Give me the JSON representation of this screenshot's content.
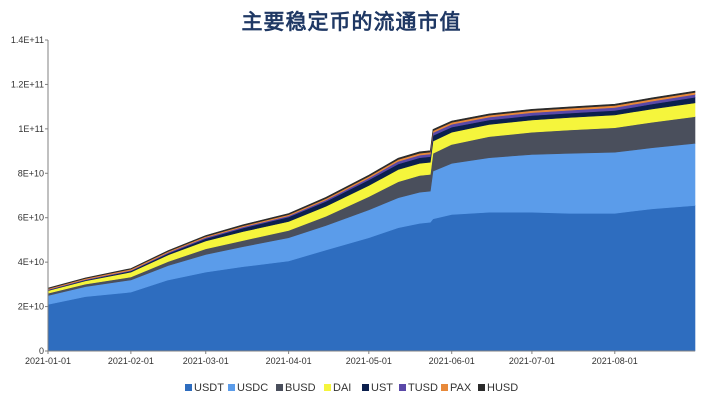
{
  "title": "主要稳定币的流通市值",
  "chart_data": {
    "type": "area",
    "stacked": true,
    "title": "主要稳定币的流通市值",
    "xlabel": "",
    "ylabel": "",
    "ylim": [
      0,
      140000000000
    ],
    "xlim": [
      "2021-01-01",
      "2021-08-31"
    ],
    "grid": false,
    "legend_position": "bottom",
    "y_ticks": [
      0,
      20000000000,
      40000000000,
      60000000000,
      80000000000,
      100000000000,
      120000000000,
      140000000000
    ],
    "y_tick_labels": [
      "0",
      "2E+10",
      "4E+10",
      "6E+10",
      "8E+10",
      "1E+11",
      "1.2E+11",
      "1.4E+11"
    ],
    "x_ticks": [
      "2021-01-01",
      "2021-02-01",
      "2021-03-01",
      "2021-04-01",
      "2021-05-01",
      "2021-06-01",
      "2021-07-01",
      "2021-08-01"
    ],
    "x_tick_labels": [
      "2021-01-01",
      "2021-02-01",
      "2021-03-01",
      "2021-04-01",
      "2021-05-01",
      "2021-06-01",
      "2021-07-01",
      "2021-08-01"
    ],
    "x": [
      "2021-01-01",
      "2021-01-15",
      "2021-02-01",
      "2021-02-15",
      "2021-03-01",
      "2021-03-15",
      "2021-04-01",
      "2021-04-15",
      "2021-05-01",
      "2021-05-12",
      "2021-05-20",
      "2021-05-24",
      "2021-05-25",
      "2021-06-01",
      "2021-06-15",
      "2021-07-01",
      "2021-07-15",
      "2021-08-01",
      "2021-08-15",
      "2021-08-31"
    ],
    "series": [
      {
        "name": "USDT",
        "color": "#2e6dbf",
        "values": [
          21000000000,
          24500000000,
          26500000000,
          32000000000,
          35500000000,
          38000000000,
          40500000000,
          45500000000,
          51000000000,
          55500000000,
          57500000000,
          58000000000,
          59500000000,
          61500000000,
          62500000000,
          62500000000,
          62000000000,
          62000000000,
          64000000000,
          65500000000
        ]
      },
      {
        "name": "USDC",
        "color": "#5b9cea",
        "values": [
          4000000000,
          4500000000,
          5500000000,
          6500000000,
          8000000000,
          9000000000,
          10500000000,
          11000000000,
          12500000000,
          13500000000,
          14000000000,
          14000000000,
          21500000000,
          23000000000,
          24500000000,
          26000000000,
          27000000000,
          27500000000,
          27500000000,
          28000000000
        ]
      },
      {
        "name": "BUSD",
        "color": "#4a4f5c",
        "values": [
          1000000000,
          1100000000,
          1300000000,
          1800000000,
          2500000000,
          2800000000,
          3300000000,
          4200000000,
          6000000000,
          7200000000,
          7500000000,
          7500000000,
          8000000000,
          8500000000,
          9500000000,
          10000000000,
          10500000000,
          11000000000,
          11500000000,
          12000000000
        ]
      },
      {
        "name": "DAI",
        "color": "#f5f53c",
        "values": [
          1200000000,
          1500000000,
          2200000000,
          3000000000,
          3500000000,
          4000000000,
          4000000000,
          4500000000,
          5000000000,
          5500000000,
          5500000000,
          5500000000,
          5500000000,
          5500000000,
          5500000000,
          5500000000,
          5600000000,
          5800000000,
          6000000000,
          6200000000
        ]
      },
      {
        "name": "UST",
        "color": "#0b1f4d",
        "values": [
          200000000,
          300000000,
          500000000,
          700000000,
          1100000000,
          1600000000,
          2000000000,
          2200000000,
          2500000000,
          2500000000,
          2500000000,
          2500000000,
          2500000000,
          2300000000,
          2000000000,
          2000000000,
          2000000000,
          2000000000,
          2200000000,
          2500000000
        ]
      },
      {
        "name": "TUSD",
        "color": "#5a48a8",
        "values": [
          300000000,
          300000000,
          350000000,
          400000000,
          500000000,
          500000000,
          500000000,
          600000000,
          900000000,
          1200000000,
          1200000000,
          1200000000,
          1300000000,
          1300000000,
          1300000000,
          1300000000,
          1300000000,
          1300000000,
          1300000000,
          1300000000
        ]
      },
      {
        "name": "PAX",
        "color": "#e8893a",
        "values": [
          400000000,
          450000000,
          500000000,
          500000000,
          500000000,
          500000000,
          600000000,
          650000000,
          750000000,
          800000000,
          850000000,
          850000000,
          850000000,
          850000000,
          850000000,
          900000000,
          900000000,
          900000000,
          900000000,
          900000000
        ]
      },
      {
        "name": "HUSD",
        "color": "#2b2b2b",
        "values": [
          200000000,
          250000000,
          300000000,
          350000000,
          400000000,
          450000000,
          500000000,
          550000000,
          550000000,
          600000000,
          600000000,
          600000000,
          600000000,
          600000000,
          600000000,
          600000000,
          600000000,
          600000000,
          600000000,
          600000000
        ]
      }
    ]
  }
}
